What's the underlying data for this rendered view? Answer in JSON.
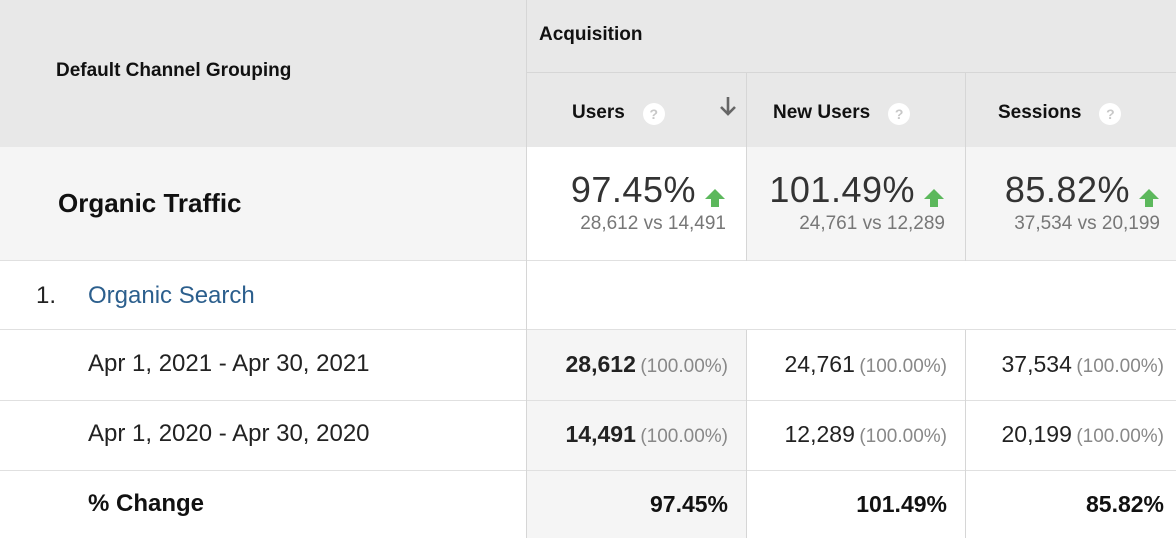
{
  "header": {
    "dimension_label": "Default Channel Grouping",
    "group_label": "Acquisition",
    "columns": [
      {
        "label": "Users",
        "help": "?"
      },
      {
        "label": "New Users",
        "help": "?"
      },
      {
        "label": "Sessions",
        "help": "?"
      }
    ]
  },
  "summary": {
    "label": "Organic Traffic",
    "metrics": [
      {
        "change": "97.45%",
        "compare": "28,612 vs 14,491"
      },
      {
        "change": "101.49%",
        "compare": "24,761 vs 12,289"
      },
      {
        "change": "85.82%",
        "compare": "37,534 vs 20,199"
      }
    ]
  },
  "rows": [
    {
      "index": "1.",
      "label": "Organic Search"
    }
  ],
  "date_rows": [
    {
      "label": "Apr 1, 2021 - Apr 30, 2021",
      "values": [
        {
          "value": "28,612",
          "pct": "(100.00%)"
        },
        {
          "value": "24,761",
          "pct": "(100.00%)"
        },
        {
          "value": "37,534",
          "pct": "(100.00%)"
        }
      ]
    },
    {
      "label": "Apr 1, 2020 - Apr 30, 2020",
      "values": [
        {
          "value": "14,491",
          "pct": "(100.00%)"
        },
        {
          "value": "12,289",
          "pct": "(100.00%)"
        },
        {
          "value": "20,199",
          "pct": "(100.00%)"
        }
      ]
    }
  ],
  "change_row": {
    "label": "% Change",
    "values": [
      "97.45%",
      "101.49%",
      "85.82%"
    ]
  },
  "colors": {
    "link": "#2c5f8d",
    "up_arrow": "#5cb85c",
    "header_bg": "#e8e8e8"
  }
}
